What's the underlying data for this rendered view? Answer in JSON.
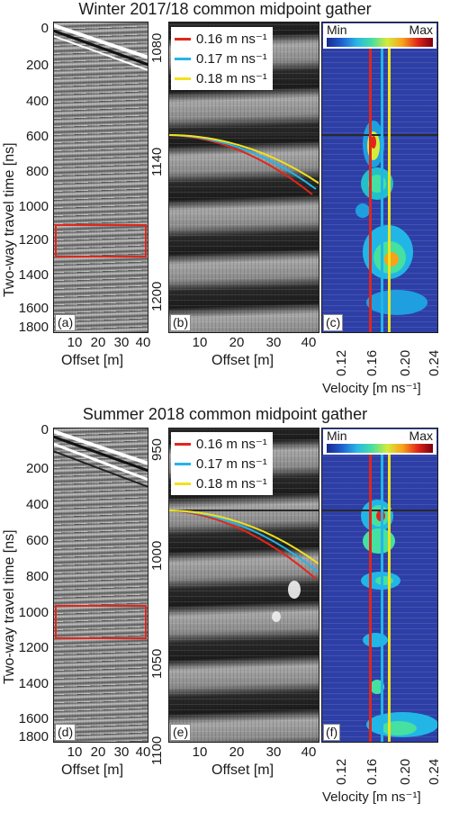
{
  "figure": {
    "top": {
      "title": "Winter 2017/18 common midpoint gather",
      "panel_a": {
        "letter": "(a)",
        "y_ticks": [
          "0",
          "200",
          "400",
          "600",
          "800",
          "1000",
          "1200",
          "1400",
          "1600",
          "1800"
        ],
        "x_ticks": [
          "10",
          "20",
          "30",
          "40"
        ],
        "y_title": "Two-way travel time [ns]",
        "x_title": "Offset [m]"
      },
      "panel_b": {
        "letter": "(b)",
        "y_ticks": [
          "1080",
          "1140",
          "1200"
        ],
        "x_ticks": [
          "10",
          "20",
          "30",
          "40"
        ],
        "x_title": "Offset [m]"
      },
      "panel_c": {
        "letter": "(c)",
        "x_ticks": [
          "0.12",
          "0.16",
          "0.20",
          "0.24"
        ],
        "x_title": "Velocity [m ns⁻¹]",
        "colorbar_min": "Min",
        "colorbar_max": "Max"
      }
    },
    "bottom": {
      "title": "Summer 2018 common midpoint gather",
      "panel_d": {
        "letter": "(d)",
        "y_ticks": [
          "0",
          "200",
          "400",
          "600",
          "800",
          "1000",
          "1200",
          "1400",
          "1600",
          "1800"
        ],
        "x_ticks": [
          "10",
          "20",
          "30",
          "40"
        ],
        "y_title": "Two-way travel time [ns]",
        "x_title": "Offset [m]"
      },
      "panel_e": {
        "letter": "(e)",
        "y_ticks": [
          "950",
          "1000",
          "1050",
          "1100"
        ],
        "x_ticks": [
          "10",
          "20",
          "30",
          "40"
        ],
        "x_title": "Offset [m]"
      },
      "panel_f": {
        "letter": "(f)",
        "x_ticks": [
          "0.12",
          "0.16",
          "0.20",
          "0.24"
        ],
        "x_title": "Velocity [m ns⁻¹]",
        "colorbar_min": "Min",
        "colorbar_max": "Max"
      }
    },
    "legend": [
      {
        "label": "0.16 m ns⁻¹",
        "color": "#e1261c"
      },
      {
        "label": "0.17 m ns⁻¹",
        "color": "#22b5e8"
      },
      {
        "label": "0.18 m ns⁻¹",
        "color": "#f2e21a"
      }
    ]
  }
}
